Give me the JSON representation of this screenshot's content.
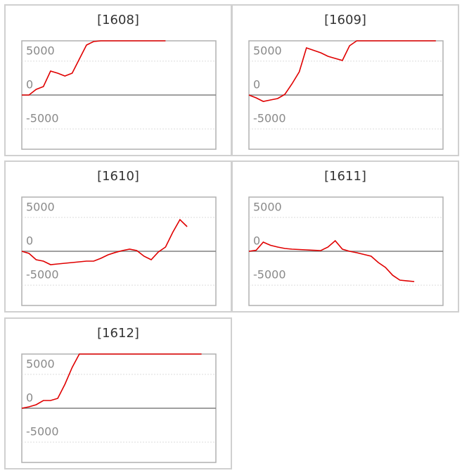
{
  "chart_data": [
    {
      "type": "line",
      "title": "[1608]",
      "color": "#e00000",
      "ylim": [
        -8000,
        8000
      ],
      "yticks": [
        -5000,
        0,
        5000
      ],
      "values": [
        0,
        0,
        830,
        1250,
        3530,
        3220,
        2800,
        3220,
        5300,
        7380,
        7900,
        8000,
        8000,
        8000,
        8000,
        8000,
        8000,
        8000,
        8000,
        8000,
        8000,
        null,
        null,
        null,
        null,
        null,
        null,
        null
      ]
    },
    {
      "type": "line",
      "title": "[1609]",
      "color": "#e00000",
      "ylim": [
        -8000,
        8000
      ],
      "yticks": [
        -5000,
        0,
        5000
      ],
      "values": [
        0,
        -420,
        -950,
        -730,
        -520,
        100,
        1660,
        3430,
        6960,
        6600,
        6230,
        5710,
        5400,
        5100,
        7270,
        8000,
        8000,
        8000,
        8000,
        8000,
        8000,
        8000,
        8000,
        8000,
        8000,
        8000,
        8000,
        null
      ]
    },
    {
      "type": "line",
      "title": "[1610]",
      "color": "#e00000",
      "ylim": [
        -8000,
        8000
      ],
      "yticks": [
        -5000,
        0,
        5000
      ],
      "values": [
        0,
        -310,
        -1250,
        -1450,
        -1970,
        -1870,
        -1770,
        -1660,
        -1560,
        -1450,
        -1450,
        -1040,
        -520,
        -180,
        100,
        310,
        100,
        -730,
        -1250,
        -100,
        620,
        2800,
        4680,
        3640,
        null,
        null,
        null,
        null
      ]
    },
    {
      "type": "line",
      "title": "[1611]",
      "color": "#e00000",
      "ylim": [
        -8000,
        8000
      ],
      "yticks": [
        -5000,
        0,
        5000
      ],
      "values": [
        0,
        150,
        1350,
        880,
        620,
        420,
        310,
        260,
        210,
        150,
        100,
        620,
        1560,
        310,
        0,
        -210,
        -470,
        -730,
        -1660,
        -2390,
        -3540,
        -4260,
        -4370,
        -4470,
        null,
        null,
        null,
        null
      ]
    },
    {
      "type": "line",
      "title": "[1612]",
      "color": "#e00000",
      "ylim": [
        -8000,
        8000
      ],
      "yticks": [
        -5000,
        0,
        5000
      ],
      "values": [
        0,
        210,
        520,
        1140,
        1140,
        1450,
        3530,
        6020,
        8000,
        8000,
        8000,
        8000,
        8000,
        8000,
        8000,
        8000,
        8000,
        8000,
        8000,
        8000,
        8000,
        8000,
        8000,
        8000,
        8000,
        8000,
        null,
        null
      ]
    }
  ]
}
